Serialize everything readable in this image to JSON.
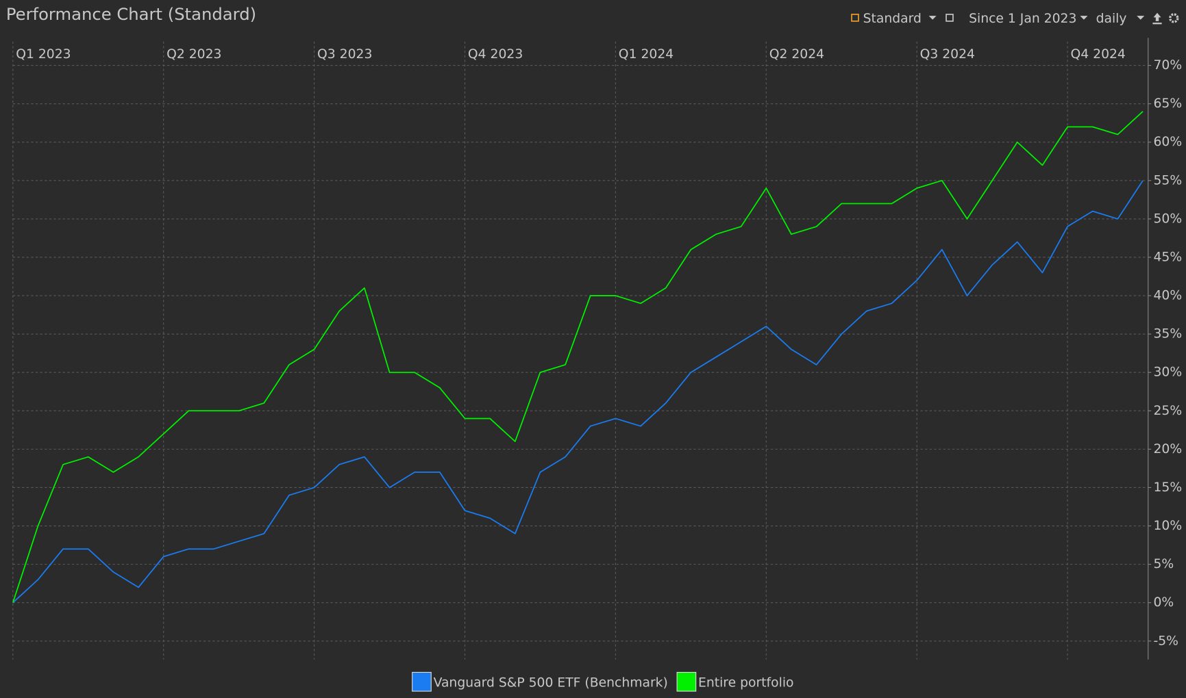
{
  "window_title": "Performance Chart (Standard)",
  "toolbar": {
    "view": "Standard",
    "period": "Since 1 Jan 2023",
    "interval": "daily"
  },
  "chart_data": {
    "type": "line",
    "categories": [
      "Q1 2023",
      null,
      null,
      null,
      null,
      null,
      "Q2 2023",
      null,
      null,
      null,
      null,
      null,
      "Q3 2023",
      null,
      null,
      null,
      null,
      null,
      "Q4 2023",
      null,
      null,
      null,
      null,
      null,
      "Q1 2024",
      null,
      null,
      null,
      null,
      null,
      "Q2 2024",
      null,
      null,
      null,
      null,
      null,
      "Q3 2024",
      null,
      null,
      null,
      null,
      null,
      "Q4 2024",
      null,
      null,
      null
    ],
    "series": [
      {
        "name": "Vanguard S&P 500 ETF (Benchmark)",
        "color": "#1a7cf0",
        "values": [
          0,
          3,
          7,
          7,
          4,
          2,
          6,
          7,
          7,
          8,
          9,
          14,
          15,
          18,
          19,
          15,
          17,
          17,
          12,
          11,
          9,
          17,
          19,
          23,
          24,
          23,
          26,
          30,
          32,
          34,
          36,
          33,
          31,
          35,
          38,
          39,
          42,
          46,
          40,
          44,
          47,
          43,
          49,
          51,
          50,
          55
        ]
      },
      {
        "name": "Entire portfolio",
        "color": "#00f000",
        "values": [
          0,
          10,
          18,
          19,
          17,
          19,
          22,
          25,
          25,
          25,
          26,
          31,
          33,
          38,
          41,
          30,
          30,
          28,
          24,
          24,
          21,
          30,
          31,
          40,
          40,
          39,
          41,
          46,
          48,
          49,
          54,
          48,
          49,
          52,
          52,
          52,
          54,
          55,
          50,
          55,
          60,
          57,
          62,
          62,
          61,
          64
        ]
      }
    ],
    "ylim": [
      -7.4,
      73.6
    ],
    "yticks": [
      {
        "value": -5,
        "label": "-5%"
      },
      {
        "value": 0,
        "label": "0%"
      },
      {
        "value": 5,
        "label": "5%"
      },
      {
        "value": 10,
        "label": "10%"
      },
      {
        "value": 15,
        "label": "15%"
      },
      {
        "value": 20,
        "label": "20%"
      },
      {
        "value": 25,
        "label": "25%"
      },
      {
        "value": 30,
        "label": "30%"
      },
      {
        "value": 35,
        "label": "35%"
      },
      {
        "value": 40,
        "label": "40%"
      },
      {
        "value": 45,
        "label": "45%"
      },
      {
        "value": 50,
        "label": "50%"
      },
      {
        "value": 55,
        "label": "55%"
      },
      {
        "value": 60,
        "label": "60%"
      },
      {
        "value": 65,
        "label": "65%"
      },
      {
        "value": 70,
        "label": "70%"
      }
    ],
    "grid": true,
    "legend": "bottom"
  }
}
